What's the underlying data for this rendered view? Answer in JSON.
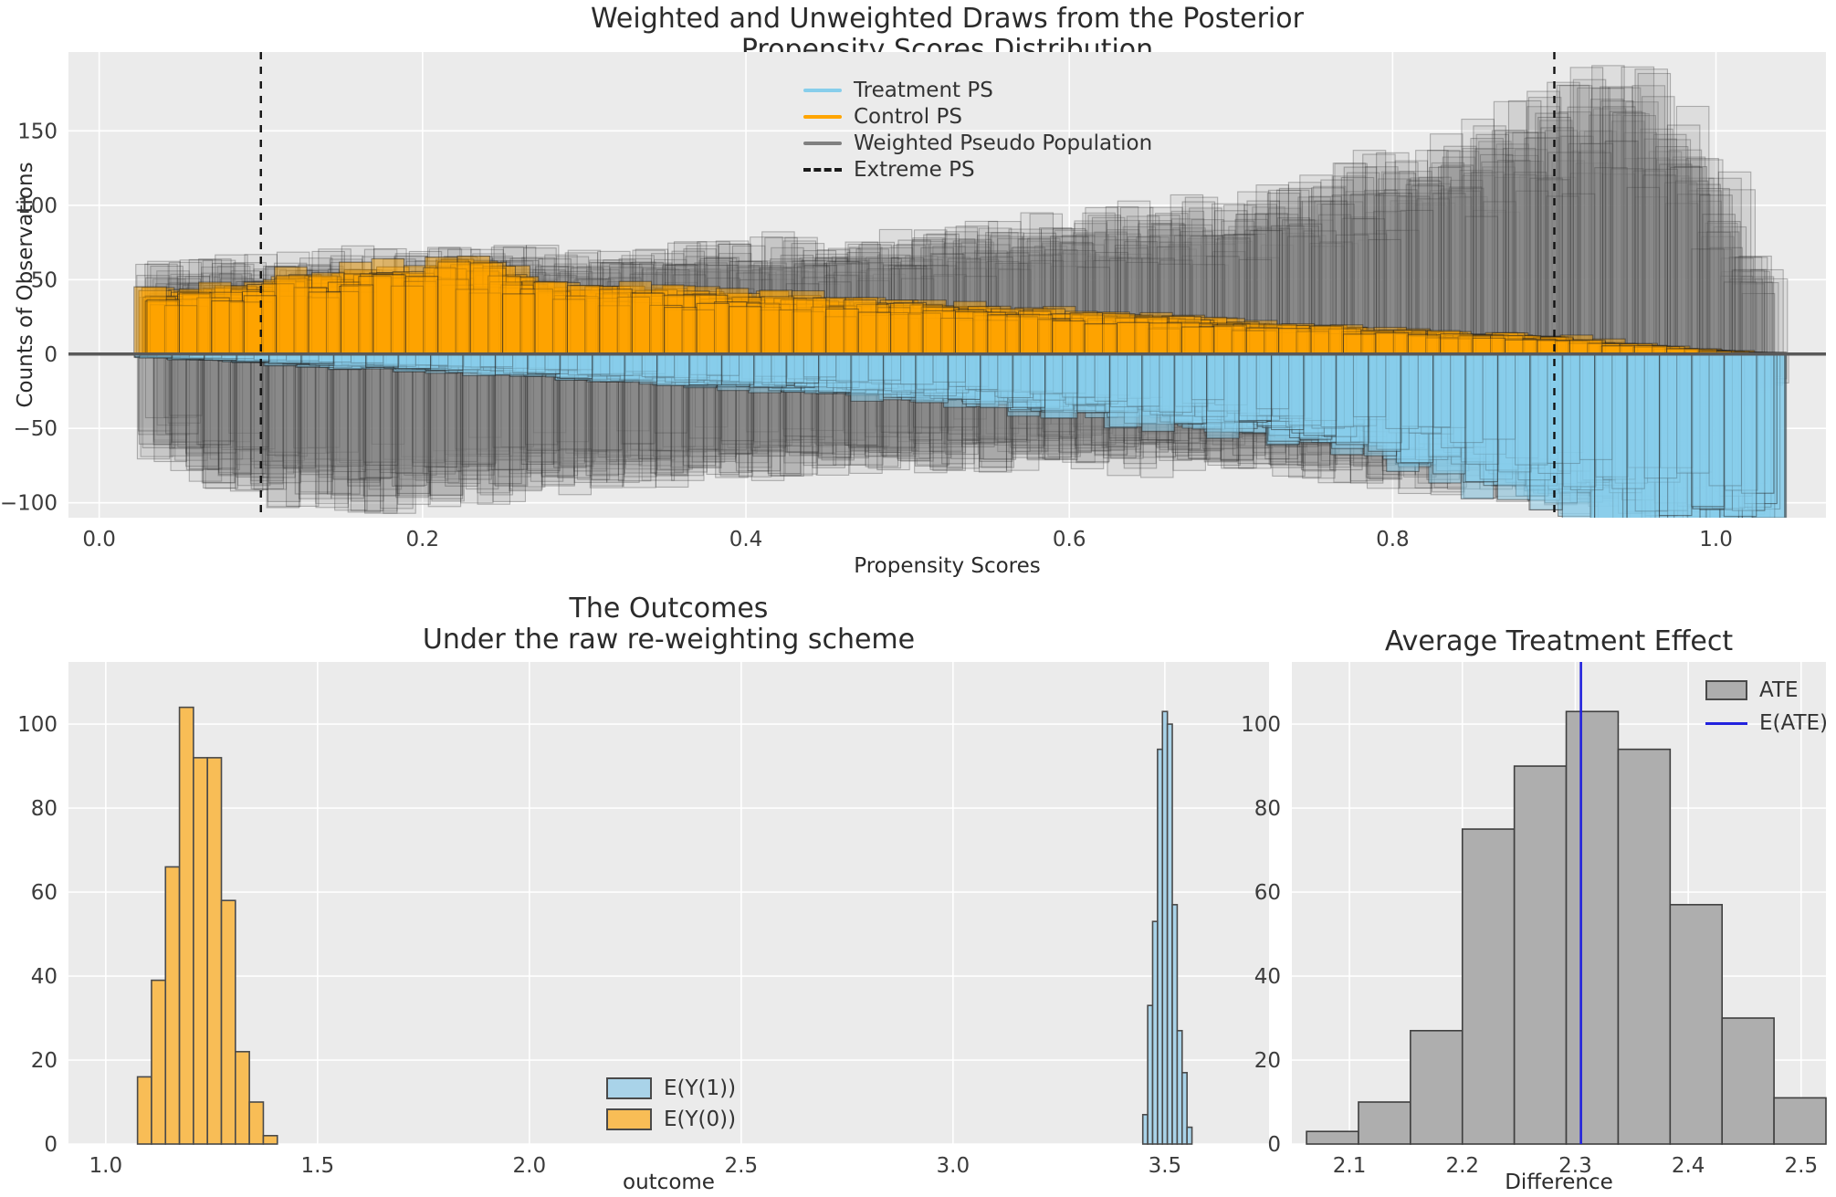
{
  "figure": {
    "background": "#ffffff",
    "axes_background": "#ebebeb",
    "grid_color": "#ffffff",
    "text_color": "#2b2b2b",
    "tick_color": "#3c3c3c"
  },
  "chart_data": [
    {
      "id": "propensity",
      "type": "bar",
      "subtype": "mirrored-histogram-posterior-draws",
      "title_lines": [
        "Weighted and Unweighted Draws from the Posterior",
        "Propensity Scores Distribution"
      ],
      "xlabel": "Propensity Scores",
      "ylabel": "Counts of Observations",
      "xlim": [
        -0.019,
        1.068
      ],
      "ylim": [
        -110,
        203
      ],
      "x_ticks": [
        0.0,
        0.2,
        0.4,
        0.6,
        0.8,
        1.0
      ],
      "y_ticks": [
        150,
        100,
        50,
        0,
        -50,
        -100
      ],
      "grid": true,
      "zero_line_color": "#595959",
      "extreme_ps": [
        0.1,
        0.9
      ],
      "bins": {
        "start": 0.033,
        "width": 0.02,
        "count": 50
      },
      "draws": {
        "count": 18,
        "seed": 11,
        "scale_jitter": 0.15,
        "bin_jitter": 0.18,
        "x_jitter": 0.012
      },
      "series": [
        {
          "name": "Control PS",
          "direction": "up",
          "color": "#FFA500",
          "fill_opacity": 0.45,
          "edge_opacity": 0.5,
          "values": [
            36,
            38,
            40,
            42,
            44,
            46,
            47,
            48,
            50,
            52,
            50,
            46,
            42,
            40,
            38,
            37,
            36,
            35,
            34,
            33,
            32,
            31,
            30,
            29,
            28,
            27,
            26,
            25,
            24,
            23,
            22,
            21,
            20,
            19,
            18,
            17,
            16,
            15,
            14,
            13,
            12,
            12,
            11,
            10,
            8,
            6,
            5,
            3,
            2,
            1
          ]
        },
        {
          "name": "Treatment PS",
          "direction": "down",
          "color": "#87CEEB",
          "fill_opacity": 0.5,
          "edge_opacity": 0.5,
          "values": [
            2,
            3,
            4,
            5,
            6,
            7,
            8,
            8,
            9,
            10,
            11,
            12,
            13,
            14,
            15,
            16,
            17,
            18,
            19,
            20,
            21,
            22,
            24,
            25,
            26,
            28,
            29,
            31,
            33,
            35,
            37,
            39,
            41,
            44,
            47,
            50,
            53,
            56,
            60,
            64,
            68,
            73,
            78,
            84,
            90,
            96,
            101,
            105,
            107,
            104
          ]
        },
        {
          "name": "Weighted Pseudo Population (treated)",
          "direction": "up",
          "color": "#828282",
          "fill_opacity": 0.13,
          "edge_opacity": 0.3,
          "values": [
            48,
            50,
            52,
            52,
            53,
            54,
            54,
            55,
            56,
            58,
            57,
            56,
            55,
            56,
            57,
            58,
            58,
            59,
            60,
            61,
            62,
            63,
            64,
            65,
            66,
            68,
            70,
            72,
            74,
            76,
            78,
            80,
            83,
            86,
            90,
            94,
            98,
            103,
            108,
            114,
            120,
            127,
            134,
            142,
            150,
            158,
            150,
            130,
            95,
            55
          ]
        },
        {
          "name": "Weighted Pseudo Population (control)",
          "direction": "down",
          "color": "#828282",
          "fill_opacity": 0.13,
          "edge_opacity": 0.3,
          "values": [
            55,
            65,
            72,
            78,
            80,
            82,
            83,
            82,
            80,
            78,
            76,
            74,
            72,
            70,
            69,
            68,
            67,
            66,
            65,
            64,
            63,
            62,
            62,
            61,
            60,
            60,
            60,
            60,
            60,
            61,
            61,
            62,
            62,
            63,
            64,
            65,
            66,
            67,
            68,
            70,
            72,
            74,
            76,
            78,
            80,
            78,
            70,
            55,
            35,
            20
          ]
        }
      ],
      "legend": [
        {
          "label": "Treatment PS",
          "color": "#87CEEB",
          "style": "line"
        },
        {
          "label": "Control PS",
          "color": "#FFA500",
          "style": "line"
        },
        {
          "label": "Weighted Pseudo Population",
          "color": "#808080",
          "style": "line"
        },
        {
          "label": "Extreme PS",
          "color": "#1a1a1a",
          "style": "dashed"
        }
      ]
    },
    {
      "id": "outcomes",
      "type": "bar",
      "subtype": "histogram",
      "title_lines": [
        "The Outcomes",
        "Under the raw re-weighting scheme"
      ],
      "xlabel": "outcome",
      "xlim": [
        0.912,
        3.746
      ],
      "ylim": [
        0,
        114.8
      ],
      "x_ticks": [
        1.0,
        1.5,
        2.0,
        2.5,
        3.0,
        3.5
      ],
      "y_ticks": [
        0,
        20,
        40,
        60,
        80,
        100
      ],
      "grid": true,
      "series": [
        {
          "name": "E(Y(0))",
          "color": "#F8BD56",
          "edge_color": "#4a4a4a",
          "bin_start": 1.075,
          "bin_width": 0.033,
          "values": [
            16,
            39,
            66,
            104,
            92,
            92,
            58,
            22,
            10,
            2
          ]
        },
        {
          "name": "E(Y(1))",
          "color": "#A9D3E9",
          "edge_color": "#4a4a4a",
          "bin_start": 3.448,
          "bin_width": 0.0116,
          "values": [
            7,
            33,
            53,
            94,
            103,
            100,
            57,
            27,
            17,
            4
          ]
        }
      ],
      "legend": [
        {
          "label": "E(Y(1))",
          "color": "#A9D3E9",
          "style": "patch"
        },
        {
          "label": "E(Y(0))",
          "color": "#F8BD56",
          "style": "patch"
        }
      ]
    },
    {
      "id": "ate",
      "type": "bar",
      "subtype": "histogram",
      "title_lines": [
        "Average Treatment Effect"
      ],
      "xlabel": "Difference",
      "xlim": [
        2.049,
        2.522
      ],
      "ylim": [
        0,
        114.8
      ],
      "x_ticks": [
        2.1,
        2.2,
        2.3,
        2.4,
        2.5
      ],
      "y_ticks": [
        0,
        20,
        40,
        60,
        80,
        100
      ],
      "grid": true,
      "series": [
        {
          "name": "ATE",
          "color": "#AEAEAE",
          "edge_color": "#3f3f3f",
          "bin_start": 2.062,
          "bin_width": 0.046,
          "values": [
            3,
            10,
            27,
            75,
            90,
            103,
            94,
            57,
            30,
            11
          ]
        }
      ],
      "e_ate": {
        "label": "E(ATE)",
        "x": 2.305,
        "color": "#2222DD"
      },
      "legend": [
        {
          "label": "ATE",
          "color": "#AEAEAE",
          "style": "patch"
        },
        {
          "label": "E(ATE)",
          "color": "#2222DD",
          "style": "line"
        }
      ]
    }
  ]
}
